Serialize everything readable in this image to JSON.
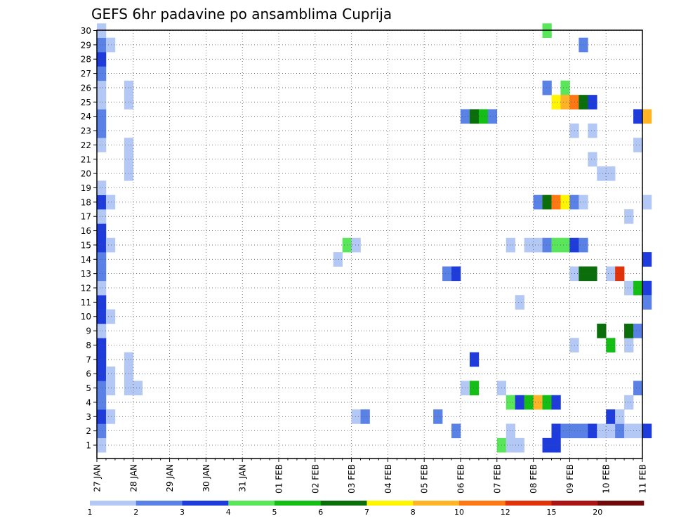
{
  "chart_data": {
    "type": "heatmap",
    "title": "GEFS 6hr padavine po ansamblima Cuprija",
    "xlabel": "",
    "ylabel": "",
    "x_ticks": [
      "27 JAN",
      "28 JAN",
      "29 JAN",
      "30 JAN",
      "31 JAN",
      "01 FEB",
      "02 FEB",
      "03 FEB",
      "04 FEB",
      "05 FEB",
      "06 FEB",
      "07 FEB",
      "08 FEB",
      "09 FEB",
      "10 FEB",
      "11 FEB"
    ],
    "y_ticks": [
      "1",
      "2",
      "3",
      "4",
      "5",
      "6",
      "7",
      "8",
      "9",
      "10",
      "11",
      "12",
      "13",
      "14",
      "15",
      "16",
      "17",
      "18",
      "19",
      "20",
      "21",
      "22",
      "23",
      "24",
      "25",
      "26",
      "27",
      "28",
      "29",
      "30"
    ],
    "x_unit": "6-hour step from 27 JAN",
    "xlim": [
      0,
      60
    ],
    "ylim": [
      1,
      30
    ],
    "grid": true,
    "colorbar": {
      "levels": [
        "1",
        "2",
        "3",
        "4",
        "5",
        "6",
        "7",
        "8",
        "10",
        "12",
        "15",
        "20"
      ],
      "colors": [
        "#b4c8f5",
        "#5a82e6",
        "#1e3cdc",
        "#5ae65a",
        "#14be14",
        "#0a6e0a",
        "#fff500",
        "#ffb428",
        "#ff7814",
        "#e1320a",
        "#aa1414",
        "#6e0a0a"
      ]
    },
    "cells": [
      [
        0,
        1,
        1
      ],
      [
        0,
        2,
        2
      ],
      [
        0,
        3,
        3
      ],
      [
        0,
        4,
        2
      ],
      [
        0,
        5,
        2
      ],
      [
        0,
        6,
        3
      ],
      [
        0,
        7,
        3
      ],
      [
        0,
        8,
        3
      ],
      [
        0,
        9,
        1
      ],
      [
        0,
        10,
        3
      ],
      [
        0,
        11,
        3
      ],
      [
        0,
        12,
        1
      ],
      [
        0,
        13,
        2
      ],
      [
        0,
        14,
        2
      ],
      [
        0,
        15,
        3
      ],
      [
        0,
        16,
        3
      ],
      [
        0,
        17,
        1
      ],
      [
        0,
        18,
        3
      ],
      [
        0,
        19,
        1
      ],
      [
        0,
        22,
        1
      ],
      [
        0,
        23,
        2
      ],
      [
        0,
        24,
        2
      ],
      [
        0,
        25,
        1
      ],
      [
        0,
        26,
        1
      ],
      [
        0,
        27,
        2
      ],
      [
        0,
        28,
        3
      ],
      [
        0,
        29,
        2
      ],
      [
        0,
        30,
        1
      ],
      [
        1,
        3,
        1
      ],
      [
        1,
        5,
        1
      ],
      [
        1,
        6,
        1
      ],
      [
        1,
        10,
        1
      ],
      [
        1,
        15,
        1
      ],
      [
        1,
        18,
        1
      ],
      [
        1,
        29,
        1
      ],
      [
        3,
        5,
        1
      ],
      [
        3,
        6,
        1
      ],
      [
        3,
        7,
        1
      ],
      [
        3,
        20,
        1
      ],
      [
        3,
        21,
        1
      ],
      [
        3,
        22,
        1
      ],
      [
        3,
        25,
        1
      ],
      [
        3,
        26,
        1
      ],
      [
        4,
        5,
        1
      ],
      [
        26,
        14,
        1
      ],
      [
        27,
        15,
        4
      ],
      [
        28,
        15,
        1
      ],
      [
        28,
        3,
        1
      ],
      [
        29,
        3,
        2
      ],
      [
        37,
        3,
        2
      ],
      [
        38,
        13,
        2
      ],
      [
        39,
        13,
        3
      ],
      [
        39,
        2,
        2
      ],
      [
        40,
        5,
        1
      ],
      [
        41,
        5,
        5
      ],
      [
        40,
        24,
        2
      ],
      [
        41,
        24,
        6
      ],
      [
        42,
        24,
        5
      ],
      [
        43,
        24,
        2
      ],
      [
        41,
        7,
        3
      ],
      [
        44,
        1,
        4
      ],
      [
        45,
        1,
        1
      ],
      [
        46,
        1,
        1
      ],
      [
        45,
        2,
        1
      ],
      [
        45,
        15,
        1
      ],
      [
        44,
        5,
        1
      ],
      [
        45,
        4,
        4
      ],
      [
        46,
        4,
        3
      ],
      [
        47,
        4,
        5
      ],
      [
        48,
        4,
        8
      ],
      [
        49,
        4,
        5
      ],
      [
        50,
        4,
        3
      ],
      [
        46,
        11,
        1
      ],
      [
        47,
        15,
        1
      ],
      [
        48,
        15,
        1
      ],
      [
        49,
        15,
        2
      ],
      [
        50,
        15,
        4
      ],
      [
        51,
        15,
        4
      ],
      [
        52,
        15,
        3
      ],
      [
        53,
        15,
        2
      ],
      [
        48,
        18,
        2
      ],
      [
        49,
        18,
        6
      ],
      [
        50,
        18,
        9
      ],
      [
        51,
        18,
        7
      ],
      [
        52,
        18,
        2
      ],
      [
        53,
        18,
        1
      ],
      [
        49,
        1,
        3
      ],
      [
        50,
        1,
        3
      ],
      [
        50,
        2,
        3
      ],
      [
        49,
        26,
        2
      ],
      [
        51,
        26,
        4
      ],
      [
        50,
        25,
        7
      ],
      [
        51,
        25,
        8
      ],
      [
        52,
        25,
        9
      ],
      [
        53,
        25,
        6
      ],
      [
        54,
        25,
        3
      ],
      [
        49,
        30,
        4
      ],
      [
        51,
        2,
        2
      ],
      [
        52,
        2,
        2
      ],
      [
        53,
        2,
        2
      ],
      [
        54,
        2,
        3
      ],
      [
        55,
        2,
        1
      ],
      [
        56,
        2,
        1
      ],
      [
        57,
        2,
        2
      ],
      [
        58,
        2,
        1
      ],
      [
        59,
        2,
        1
      ],
      [
        60,
        2,
        3
      ],
      [
        52,
        8,
        1
      ],
      [
        52,
        13,
        1
      ],
      [
        52,
        23,
        1
      ],
      [
        53,
        13,
        6
      ],
      [
        54,
        13,
        6
      ],
      [
        53,
        29,
        2
      ],
      [
        54,
        23,
        1
      ],
      [
        54,
        21,
        1
      ],
      [
        55,
        9,
        6
      ],
      [
        56,
        8,
        5
      ],
      [
        56,
        13,
        1
      ],
      [
        57,
        13,
        10
      ],
      [
        55,
        20,
        1
      ],
      [
        56,
        20,
        1
      ],
      [
        56,
        3,
        3
      ],
      [
        57,
        3,
        1
      ],
      [
        58,
        4,
        1
      ],
      [
        58,
        8,
        1
      ],
      [
        58,
        9,
        6
      ],
      [
        59,
        9,
        2
      ],
      [
        58,
        12,
        1
      ],
      [
        59,
        12,
        5
      ],
      [
        60,
        12,
        3
      ],
      [
        58,
        17,
        1
      ],
      [
        59,
        5,
        2
      ],
      [
        59,
        22,
        1
      ],
      [
        59,
        24,
        3
      ],
      [
        60,
        24,
        8
      ],
      [
        60,
        11,
        2
      ],
      [
        60,
        14,
        3
      ],
      [
        60,
        18,
        1
      ]
    ]
  }
}
